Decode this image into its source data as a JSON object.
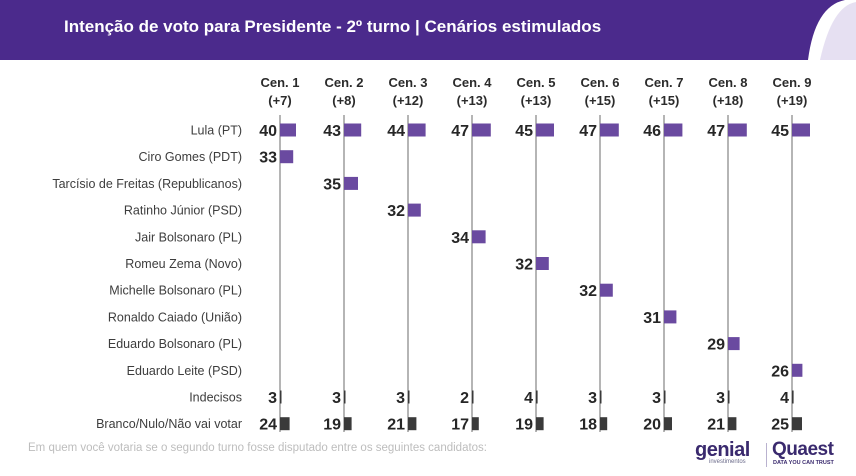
{
  "header": {
    "title": "Intenção de voto para Presidente - 2º turno | Cenários estimulados"
  },
  "colors": {
    "banner": "#4b2a8c",
    "bar_candidate": "#6a4aa0",
    "bar_other": "#3a3a3a",
    "axis_line": "#b5b5b5"
  },
  "chart_data": {
    "type": "bar",
    "scenarios": [
      {
        "name": "Cen. 1",
        "margin": "(+7)"
      },
      {
        "name": "Cen. 2",
        "margin": "(+8)"
      },
      {
        "name": "Cen. 3",
        "margin": "(+12)"
      },
      {
        "name": "Cen. 4",
        "margin": "(+13)"
      },
      {
        "name": "Cen. 5",
        "margin": "(+13)"
      },
      {
        "name": "Cen. 6",
        "margin": "(+15)"
      },
      {
        "name": "Cen. 7",
        "margin": "(+15)"
      },
      {
        "name": "Cen. 8",
        "margin": "(+18)"
      },
      {
        "name": "Cen. 9",
        "margin": "(+19)"
      }
    ],
    "rows": [
      {
        "label": "Lula (PT)",
        "kind": "candidate",
        "values": [
          40,
          43,
          44,
          47,
          45,
          47,
          46,
          47,
          45
        ]
      },
      {
        "label": "Ciro Gomes (PDT)",
        "kind": "candidate",
        "values": [
          33,
          null,
          null,
          null,
          null,
          null,
          null,
          null,
          null
        ]
      },
      {
        "label": "Tarcísio de Freitas (Republicanos)",
        "kind": "candidate",
        "values": [
          null,
          35,
          null,
          null,
          null,
          null,
          null,
          null,
          null
        ]
      },
      {
        "label": "Ratinho Júnior (PSD)",
        "kind": "candidate",
        "values": [
          null,
          null,
          32,
          null,
          null,
          null,
          null,
          null,
          null
        ]
      },
      {
        "label": "Jair Bolsonaro (PL)",
        "kind": "candidate",
        "values": [
          null,
          null,
          null,
          34,
          null,
          null,
          null,
          null,
          null
        ]
      },
      {
        "label": "Romeu Zema (Novo)",
        "kind": "candidate",
        "values": [
          null,
          null,
          null,
          null,
          32,
          null,
          null,
          null,
          null
        ]
      },
      {
        "label": "Michelle Bolsonaro (PL)",
        "kind": "candidate",
        "values": [
          null,
          null,
          null,
          null,
          null,
          32,
          null,
          null,
          null
        ]
      },
      {
        "label": "Ronaldo Caiado (União)",
        "kind": "candidate",
        "values": [
          null,
          null,
          null,
          null,
          null,
          null,
          31,
          null,
          null
        ]
      },
      {
        "label": "Eduardo Bolsonaro (PL)",
        "kind": "candidate",
        "values": [
          null,
          null,
          null,
          null,
          null,
          null,
          null,
          29,
          null
        ]
      },
      {
        "label": "Eduardo Leite (PSD)",
        "kind": "candidate",
        "values": [
          null,
          null,
          null,
          null,
          null,
          null,
          null,
          null,
          26
        ]
      },
      {
        "label": "Indecisos",
        "kind": "other",
        "values": [
          3,
          3,
          3,
          2,
          4,
          3,
          3,
          3,
          4
        ]
      },
      {
        "label": "Branco/Nulo/Não vai votar",
        "kind": "other",
        "values": [
          24,
          19,
          21,
          17,
          19,
          18,
          20,
          21,
          25
        ]
      }
    ]
  },
  "footnote": "Em quem você votaria se o segundo turno fosse disputado entre os seguintes candidatos:",
  "logos": {
    "genial": {
      "name": "genial",
      "tagline": "investimentos"
    },
    "quaest": {
      "name": "Quaest",
      "tagline": "DATA YOU CAN TRUST"
    }
  }
}
